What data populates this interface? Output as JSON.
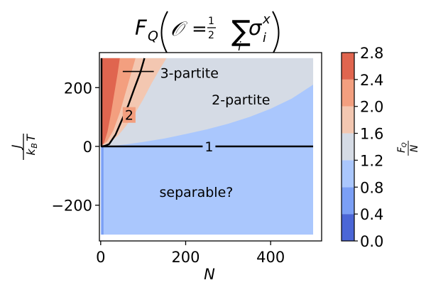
{
  "chart_data": {
    "type": "heatmap",
    "title": "F_Q(O = ½ Σ_i σ_i^x)",
    "xlabel": "N",
    "ylabel": "J / (k_B T)",
    "xlim": [
      -3,
      520
    ],
    "ylim": [
      -300,
      300
    ],
    "x_ticks": [
      0,
      200,
      400
    ],
    "x_tick_labels": [
      "0",
      "200",
      "400"
    ],
    "y_ticks": [
      -200,
      0,
      200
    ],
    "y_tick_labels": [
      "−200",
      "0",
      "200"
    ],
    "data_extent": {
      "x": [
        0,
        500
      ],
      "y": [
        -300,
        300
      ]
    },
    "colorbar": {
      "label": "F_Q / N",
      "ticks": [
        0.0,
        0.4,
        0.8,
        1.2,
        1.6,
        2.0,
        2.4,
        2.8
      ],
      "tick_labels": [
        "0.0",
        "0.4",
        "0.8",
        "1.2",
        "1.6",
        "2.0",
        "2.4",
        "2.8"
      ],
      "levels": [
        {
          "from": 0.0,
          "to": 0.4,
          "color": "#4b66d6"
        },
        {
          "from": 0.4,
          "to": 0.8,
          "color": "#7b9ff5"
        },
        {
          "from": 0.8,
          "to": 1.2,
          "color": "#aac7fd"
        },
        {
          "from": 1.2,
          "to": 1.6,
          "color": "#d5dbe5"
        },
        {
          "from": 1.6,
          "to": 2.0,
          "color": "#f3c7b1"
        },
        {
          "from": 2.0,
          "to": 2.4,
          "color": "#f39f7f"
        },
        {
          "from": 2.4,
          "to": 2.8,
          "color": "#e0654f"
        }
      ]
    },
    "contours": [
      {
        "label": "1",
        "points": [
          [
            3,
            0
          ],
          [
            500,
            0
          ]
        ]
      },
      {
        "label": "2",
        "points": [
          [
            2,
            0
          ],
          [
            10,
            2
          ],
          [
            20,
            8
          ],
          [
            35,
            40
          ],
          [
            50,
            90
          ],
          [
            65,
            140
          ],
          [
            80,
            200
          ],
          [
            93,
            250
          ],
          [
            103,
            300
          ]
        ]
      },
      {
        "label": "3",
        "points": [
          [
            2,
            300
          ],
          [
            2,
            0
          ],
          [
            5,
            0
          ]
        ]
      }
    ],
    "contour_labels": [
      {
        "text": "1",
        "x": 255,
        "y": 0
      },
      {
        "text": "2",
        "x": 67,
        "y": 107
      }
    ],
    "annotations": [
      {
        "text": "3-partite",
        "x": 140,
        "y": 250
      },
      {
        "text": "2-partite",
        "x": 330,
        "y": 160
      },
      {
        "text": "separable?",
        "x": 225,
        "y": -155
      }
    ],
    "annotation_line": {
      "x0": 52,
      "x1": 125,
      "y": 255
    },
    "regions": [
      {
        "level": "1.2-1.6",
        "boundary": "upper",
        "points": [
          [
            0,
            0
          ],
          [
            20,
            1
          ],
          [
            60,
            7
          ],
          [
            100,
            15
          ],
          [
            150,
            27
          ],
          [
            200,
            42
          ],
          [
            250,
            58
          ],
          [
            300,
            77
          ],
          [
            350,
            100
          ],
          [
            400,
            128
          ],
          [
            450,
            163
          ],
          [
            500,
            210
          ]
        ]
      },
      {
        "level": "1.6-2.0",
        "boundary": "upper",
        "points": [
          [
            0,
            0
          ],
          [
            20,
            12
          ],
          [
            40,
            35
          ],
          [
            60,
            70
          ],
          [
            80,
            110
          ],
          [
            100,
            160
          ],
          [
            120,
            215
          ],
          [
            140,
            265
          ],
          [
            155,
            300
          ]
        ]
      },
      {
        "level": "2.0-2.4",
        "boundary": "upper",
        "points": [
          [
            0,
            0
          ],
          [
            15,
            17
          ],
          [
            30,
            55
          ],
          [
            45,
            115
          ],
          [
            60,
            190
          ],
          [
            75,
            265
          ],
          [
            82,
            300
          ]
        ]
      },
      {
        "level": "2.4-2.8",
        "boundary": "upper",
        "points": [
          [
            0,
            0
          ],
          [
            8,
            12
          ],
          [
            16,
            50
          ],
          [
            24,
            110
          ],
          [
            32,
            180
          ],
          [
            40,
            250
          ],
          [
            45,
            300
          ]
        ]
      }
    ]
  }
}
